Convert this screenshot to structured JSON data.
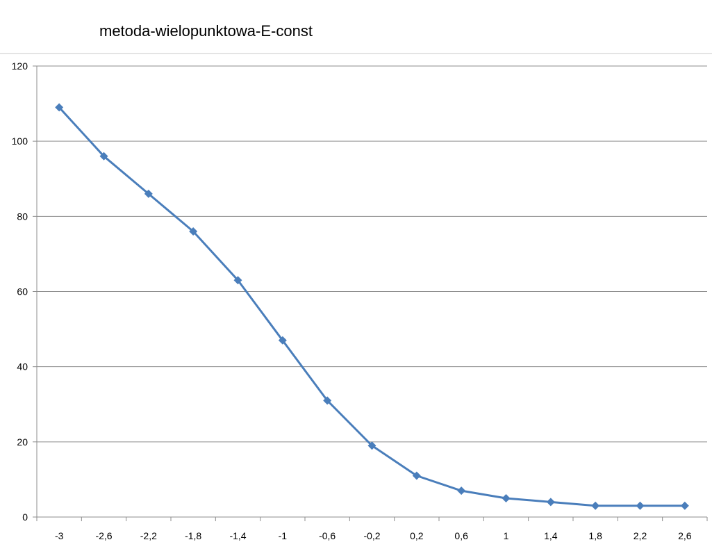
{
  "chart_data": {
    "type": "line",
    "title": "metoda-wielopunktowa-E-const",
    "xlabel": "",
    "ylabel": "",
    "categories": [
      "-3",
      "-2,6",
      "-2,2",
      "-1,8",
      "-1,4",
      "-1",
      "-0,6",
      "-0,2",
      "0,2",
      "0,6",
      "1",
      "1,4",
      "1,8",
      "2,2",
      "2,6"
    ],
    "series": [
      {
        "values": [
          109,
          96,
          86,
          76,
          63,
          47,
          31,
          19,
          11,
          7,
          5,
          4,
          3,
          3,
          3
        ],
        "color": "#4a7ebb",
        "marker": "diamond"
      }
    ],
    "ylim": [
      0,
      120
    ],
    "yticks": [
      "0",
      "20",
      "40",
      "60",
      "80",
      "100",
      "120"
    ],
    "grid": "horizontal",
    "legend": "none"
  }
}
